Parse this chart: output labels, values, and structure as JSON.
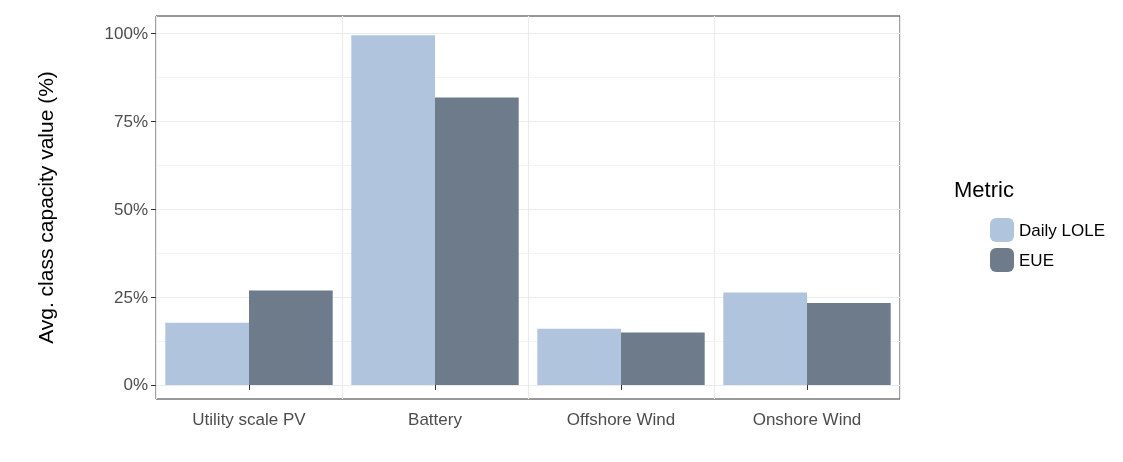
{
  "chart_data": {
    "type": "bar",
    "ylabel": "Avg. class capacity value (%)",
    "legend_title": "Metric",
    "categories": [
      "Utility scale PV",
      "Battery",
      "Offshore Wind",
      "Onshore Wind"
    ],
    "series": [
      {
        "name": "Daily LOLE",
        "color": "#b0c4de",
        "values": [
          17.7,
          99.5,
          16,
          26.3
        ]
      },
      {
        "name": "EUE",
        "color": "#6e7b8b",
        "values": [
          26.9,
          81.8,
          14.9,
          23.3
        ]
      }
    ],
    "ylim": [
      -4,
      105
    ],
    "yticks": [
      {
        "value": 0,
        "label": "0%"
      },
      {
        "value": 25,
        "label": "25%"
      },
      {
        "value": 50,
        "label": "50%"
      },
      {
        "value": 75,
        "label": "75%"
      },
      {
        "value": 100,
        "label": "100%"
      }
    ],
    "grid": true,
    "legend": "right"
  }
}
